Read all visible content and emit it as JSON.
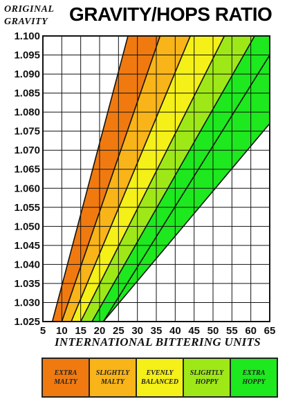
{
  "header": {
    "og_label_line1": "ORIGINAL",
    "og_label_line2": "GRAVITY",
    "title": "GRAVITY/HOPS RATIO"
  },
  "chart_data": {
    "type": "area",
    "title": "GRAVITY/HOPS RATIO",
    "xlabel": "INTERNATIONAL BITTERING UNITS",
    "ylabel": "ORIGINAL GRAVITY",
    "xlim": [
      5,
      65
    ],
    "ylim": [
      1.025,
      1.1
    ],
    "grid": true,
    "x_ticks": [
      "5",
      "10",
      "15",
      "20",
      "25",
      "30",
      "35",
      "40",
      "45",
      "50",
      "55",
      "60",
      "65"
    ],
    "y_ticks": [
      "1.025",
      "1.030",
      "1.035",
      "1.040",
      "1.045",
      "1.050",
      "1.055",
      "1.060",
      "1.065",
      "1.070",
      "1.075",
      "1.080",
      "1.085",
      "1.090",
      "1.095",
      "1.100"
    ],
    "boundary_lines": [
      {
        "x": [
          7.5,
          27.5
        ],
        "y": [
          1.025,
          1.1
        ]
      },
      {
        "x": [
          10,
          36
        ],
        "y": [
          1.025,
          1.1
        ]
      },
      {
        "x": [
          12.5,
          44
        ],
        "y": [
          1.025,
          1.1
        ]
      },
      {
        "x": [
          15,
          53
        ],
        "y": [
          1.025,
          1.1
        ]
      },
      {
        "x": [
          18,
          61
        ],
        "y": [
          1.025,
          1.1
        ]
      },
      {
        "x": [
          21,
          65
        ],
        "y": [
          1.025,
          1.095
        ]
      },
      {
        "x": [
          21,
          65
        ],
        "y": [
          1.025,
          1.077
        ]
      }
    ],
    "bands": [
      {
        "name": "EXTRA\nMALTY",
        "color": "#f07a10"
      },
      {
        "name": "SLIGHTLY\nMALTY",
        "color": "#f8b418"
      },
      {
        "name": "EVENLY\nBALANCED",
        "color": "#f4f018"
      },
      {
        "name": "SLIGHTLY\nHOPPY",
        "color": "#9ee818"
      },
      {
        "name": "EXTRA\nHOPPY",
        "color": "#1ee81e"
      }
    ]
  },
  "legend": {
    "items": [
      {
        "label": "EXTRA\nMALTY",
        "color": "#f07a10"
      },
      {
        "label": "SLIGHTLY\nMALTY",
        "color": "#f8b418"
      },
      {
        "label": "EVENLY\nBALANCED",
        "color": "#f4f018"
      },
      {
        "label": "SLIGHTLY\nHOPPY",
        "color": "#9ee818"
      },
      {
        "label": "EXTRA\nHOPPY",
        "color": "#1ee81e"
      }
    ]
  }
}
